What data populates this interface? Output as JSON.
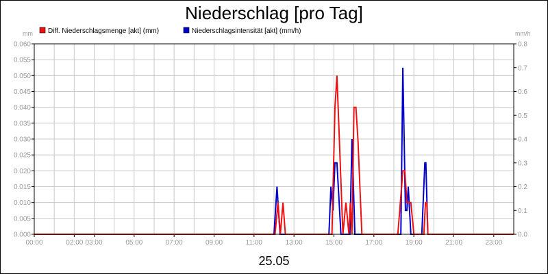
{
  "chart_data": {
    "type": "line",
    "title": "Niederschlag [pro Tag]",
    "date_label": "25.05",
    "left_unit": "mm",
    "right_unit": "mm/h",
    "x_tick_labels": [
      "00:00",
      "02:00",
      "03:00",
      "05:00",
      "07:00",
      "09:00",
      "11:00",
      "13:00",
      "15:00",
      "17:00",
      "19:00",
      "21:00",
      "23:00"
    ],
    "x_tick_hours": [
      0,
      2,
      3,
      5,
      7,
      9,
      11,
      13,
      15,
      17,
      19,
      21,
      23
    ],
    "xlim_hours": [
      0,
      24
    ],
    "y_left_ticks": [
      "0.000",
      "0.005",
      "0.010",
      "0.015",
      "0.020",
      "0.025",
      "0.030",
      "0.035",
      "0.040",
      "0.045",
      "0.050",
      "0.055",
      "0.060"
    ],
    "y_left_lim": [
      0,
      0.06
    ],
    "y_right_ticks": [
      "0.0",
      "0.1",
      "0.2",
      "0.3",
      "0.4",
      "0.5",
      "0.6",
      "0.7",
      "0.8"
    ],
    "y_right_lim": [
      0,
      0.8
    ],
    "grid": true,
    "legend_position": "top-left",
    "series": [
      {
        "name": "Diff. Niederschlagsmenge [akt] (mm)",
        "axis": "left",
        "color": "#ee1111",
        "x": [
          0,
          12.05,
          12.2,
          12.32,
          12.45,
          12.57,
          12.7,
          14.9,
          15.05,
          15.15,
          15.45,
          15.6,
          15.75,
          15.82,
          15.9,
          16.0,
          16.1,
          16.2,
          16.4,
          16.6,
          18.2,
          18.45,
          18.55,
          18.65,
          18.75,
          18.85,
          19.0,
          19.3,
          19.5,
          19.58,
          19.65,
          19.7,
          24
        ],
        "y": [
          0,
          0,
          0.01,
          0,
          0.01,
          0,
          0,
          0,
          0.04,
          0.05,
          0,
          0.01,
          0,
          0.01,
          0,
          0.04,
          0.04,
          0.03,
          0,
          0,
          0,
          0.02,
          0.02,
          0.01,
          0.01,
          0.01,
          0,
          0,
          0,
          0.01,
          0.01,
          0,
          0
        ]
      },
      {
        "name": "Niederschlagsintensität [akt] (mm/h)",
        "axis": "right",
        "color": "#0000cc",
        "x": [
          0,
          12.0,
          12.15,
          12.3,
          14.6,
          14.75,
          14.85,
          14.95,
          15.05,
          15.15,
          15.35,
          15.5,
          15.6,
          15.7,
          15.8,
          15.9,
          16.05,
          18.2,
          18.35,
          18.45,
          18.58,
          18.65,
          18.72,
          18.85,
          19.0,
          19.3,
          19.4,
          19.55,
          19.6,
          19.7,
          24
        ],
        "y": [
          0,
          0,
          0.2,
          0,
          0,
          0,
          0.2,
          0.1,
          0.3,
          0.3,
          0,
          0,
          0,
          0,
          0,
          0.4,
          0,
          0,
          0,
          0.7,
          0.1,
          0.1,
          0.2,
          0,
          0,
          0,
          0,
          0.3,
          0.3,
          0,
          0
        ]
      }
    ]
  }
}
